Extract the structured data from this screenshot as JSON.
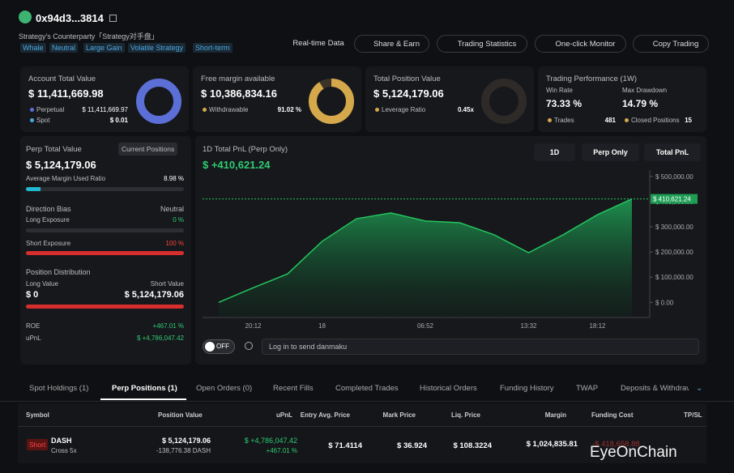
{
  "header": {
    "address": "0x94d3...3814",
    "subtitle": "Strategy's Counterparty「Strategy对手盘」",
    "tags": [
      "Whale",
      "Neutral",
      "Large Gain",
      "Volatile Strategy",
      "Short-term"
    ],
    "buttons": [
      "Real-time Data",
      "Share & Earn",
      "Trading Statistics",
      "One-click Monitor",
      "Copy Trading"
    ]
  },
  "cards": {
    "account": {
      "title": "Account Total Value",
      "value": "$ 11,411,669.98",
      "perpetual_label": "Perpetual",
      "perpetual": "$ 11,411,669.97",
      "spot_label": "Spot",
      "spot": "$ 0.01"
    },
    "margin": {
      "title": "Free margin available",
      "value": "$ 10,386,834.16",
      "withdrawable_label": "Withdrawable",
      "withdrawable": "91.02 %"
    },
    "position": {
      "title": "Total Position Value",
      "value": "$ 5,124,179.06",
      "leverage_label": "Leverage Ratio",
      "leverage": "0.45x"
    },
    "performance": {
      "title": "Trading Performance (1W)",
      "win_rate_label": "Win Rate",
      "win_rate": "73.33 %",
      "drawdown_label": "Max Drawdown",
      "drawdown": "14.79 %",
      "trades_label": "Trades",
      "trades": "481",
      "closed_label": "Closed Positions",
      "closed": "15"
    }
  },
  "perp": {
    "title": "Perp Total Value",
    "button": "Current Positions",
    "value": "$ 5,124,179.06",
    "margin_label": "Average Margin Used Ratio",
    "margin": "8.98 %",
    "bias_label": "Direction Bias",
    "bias": "Neutral",
    "long_label": "Long Exposure",
    "long": "0 %",
    "short_label": "Short Exposure",
    "short": "100 %",
    "dist_label": "Position Distribution",
    "long_value_label": "Long Value",
    "short_value_label": "Short Value",
    "long_value": "$ 0",
    "short_value": "$ 5,124,179.06",
    "roe_label": "ROE",
    "roe": "+467.01 %",
    "upnl_label": "uPnL",
    "upnl": "$ +4,786,047.42"
  },
  "chart_data": {
    "type": "area",
    "title": "1D Total PnL (Perp Only)",
    "headline": "$ +410,621.24",
    "controls": [
      "1D",
      "Perp Only",
      "Total PnL"
    ],
    "color": "#22c55e",
    "categories": [
      null,
      "20:12",
      null,
      "18",
      null,
      null,
      "06:52",
      null,
      null,
      "13:32",
      null,
      "18:12",
      null
    ],
    "values": [
      0,
      58000,
      113000,
      242000,
      332000,
      355000,
      323000,
      316000,
      268000,
      197000,
      268000,
      348000,
      410621.24
    ],
    "value_labels": [
      null,
      null,
      null,
      null,
      null,
      null,
      null,
      null,
      null,
      null,
      null,
      null,
      "$ 410,621.24"
    ],
    "ylim": [
      -60000,
      525000
    ],
    "yticks": [
      {
        "value": 0,
        "label": "$ 0.00"
      },
      {
        "value": 100000,
        "label": "$ 100,000.00"
      },
      {
        "value": 200000,
        "label": "$ 200,000.00"
      },
      {
        "value": 300000,
        "label": "$ 300,000.00"
      },
      {
        "value": 400000,
        "label": "$ 400,000.00"
      },
      {
        "value": 500000,
        "label": "$ 500,000.00"
      }
    ]
  },
  "danmaku": {
    "toggle": "OFF",
    "placeholder": "Log in to send danmaku"
  },
  "tabs": {
    "items": [
      "Spot Holdings (1)",
      "Perp Positions (1)",
      "Open Orders (0)",
      "Recent Fills",
      "Completed Trades",
      "Historical Orders",
      "Funding History",
      "TWAP",
      "Deposits & Withdrav"
    ],
    "active": 1
  },
  "table": {
    "columns": [
      "Symbol",
      "Position Value",
      "uPnL",
      "Entry Avg. Price",
      "Mark Price",
      "Liq. Price",
      "Margin",
      "Funding Cost",
      "TP/SL"
    ],
    "rows": [
      {
        "side": "Short",
        "symbol": "DASH",
        "mode": "Cross 5x",
        "position_value": "$ 5,124,179.06",
        "size": "-138,776.38 DASH",
        "upnl": "$ +4,786,047.42",
        "roe": "+467.01 %",
        "entry": "$ 71.4114",
        "mark": "$ 36.924",
        "liq": "$ 108.3224",
        "margin": "$ 1,024,835.81",
        "funding": "-$ 418,658.88"
      }
    ]
  },
  "watermark": "EyeOnChain"
}
